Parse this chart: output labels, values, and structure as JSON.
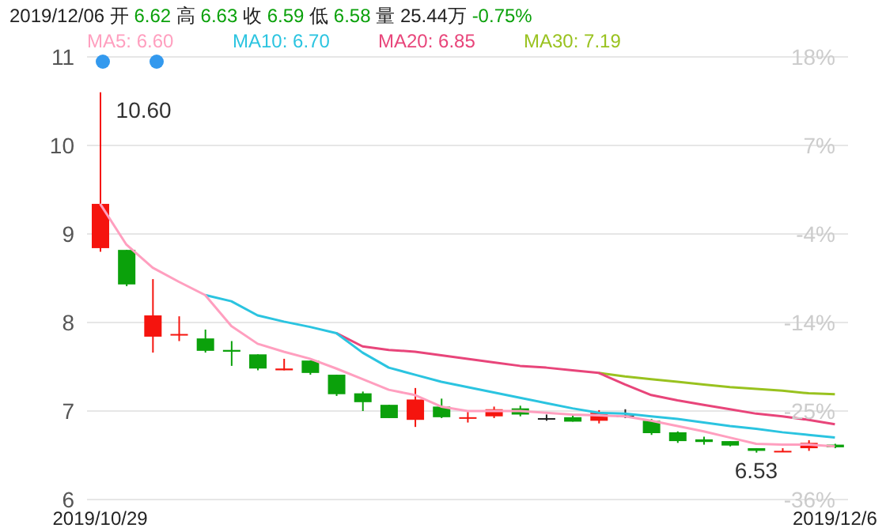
{
  "chart_data": {
    "type": "candlestick",
    "annotations": [
      "2019/12/06 开 6.62 高 6.63 收 6.59 低 6.58 量 25.44万 -0.75%",
      {
        "text": "10.60",
        "x": "2019/10/29",
        "y": 10.6
      },
      {
        "text": "6.53",
        "y": 6.53
      }
    ],
    "categories": [
      "2019/10/29",
      null,
      null,
      null,
      null,
      null,
      null,
      null,
      null,
      null,
      null,
      null,
      null,
      null,
      null,
      null,
      null,
      null,
      null,
      null,
      null,
      null,
      null,
      null,
      null,
      null,
      null,
      null,
      "2019/12/6"
    ],
    "ohlc": [
      [
        8.84,
        10.6,
        8.8,
        9.34
      ],
      [
        8.82,
        8.82,
        8.41,
        8.43
      ],
      [
        7.84,
        8.49,
        7.66,
        8.08
      ],
      [
        7.86,
        8.07,
        7.79,
        7.87
      ],
      [
        7.82,
        7.92,
        7.66,
        7.68
      ],
      [
        7.69,
        7.79,
        7.51,
        7.67
      ],
      [
        7.64,
        7.64,
        7.46,
        7.48
      ],
      [
        7.46,
        7.59,
        7.46,
        7.48
      ],
      [
        7.57,
        7.57,
        7.41,
        7.43
      ],
      [
        7.41,
        7.41,
        7.17,
        7.19
      ],
      [
        7.2,
        7.22,
        7.0,
        7.1
      ],
      [
        7.07,
        7.07,
        6.92,
        6.92
      ],
      [
        6.9,
        7.26,
        6.82,
        7.13
      ],
      [
        7.05,
        7.14,
        6.92,
        6.93
      ],
      [
        6.92,
        6.99,
        6.87,
        6.93
      ],
      [
        6.94,
        7.05,
        6.92,
        7.02
      ],
      [
        7.03,
        7.06,
        6.94,
        6.96
      ],
      [
        6.92,
        6.96,
        6.89,
        6.92
      ],
      [
        6.93,
        6.96,
        6.88,
        6.88
      ],
      [
        6.89,
        7.01,
        6.86,
        6.98
      ],
      [
        6.95,
        7.02,
        6.92,
        6.95
      ],
      [
        6.89,
        6.91,
        6.73,
        6.75
      ],
      [
        6.76,
        6.77,
        6.64,
        6.66
      ],
      [
        6.68,
        6.71,
        6.62,
        6.65
      ],
      [
        6.66,
        6.66,
        6.6,
        6.61
      ],
      [
        6.58,
        6.58,
        6.53,
        6.55
      ],
      [
        6.54,
        6.58,
        6.54,
        6.55
      ],
      [
        6.58,
        6.67,
        6.55,
        6.64
      ],
      [
        6.62,
        6.63,
        6.58,
        6.59
      ]
    ],
    "colors": [
      "#f5140e",
      "#0ba10b",
      "#f5140e",
      "#f5140e",
      "#0ba10b",
      "#0ba10b",
      "#0ba10b",
      "#f5140e",
      "#0ba10b",
      "#0ba10b",
      "#0ba10b",
      "#0ba10b",
      "#f5140e",
      "#0ba10b",
      "#f5140e",
      "#f5140e",
      "#0ba10b",
      "#222222",
      "#0ba10b",
      "#f5140e",
      "#222222",
      "#0ba10b",
      "#0ba10b",
      "#0ba10b",
      "#0ba10b",
      "#0ba10b",
      "#f5140e",
      "#f5140e",
      "#0ba10b"
    ],
    "series": [
      {
        "name": "MA30: 7.19",
        "type": "line",
        "color": "#99c21f",
        "values": [
          null,
          null,
          null,
          null,
          null,
          null,
          null,
          null,
          null,
          null,
          null,
          null,
          null,
          null,
          null,
          null,
          null,
          null,
          null,
          7.43,
          7.39,
          7.36,
          7.33,
          7.3,
          7.27,
          7.25,
          7.23,
          7.2,
          7.19
        ]
      },
      {
        "name": "MA20: 6.85",
        "type": "line",
        "color": "#e8457a",
        "values": [
          null,
          null,
          null,
          null,
          null,
          null,
          null,
          null,
          null,
          7.88,
          7.73,
          7.69,
          7.67,
          7.63,
          7.59,
          7.55,
          7.51,
          7.49,
          7.46,
          7.43,
          7.3,
          7.18,
          7.12,
          7.07,
          7.02,
          6.97,
          6.94,
          6.9,
          6.85
        ]
      },
      {
        "name": "MA10: 6.70",
        "type": "line",
        "color": "#2bc4e0",
        "values": [
          null,
          null,
          null,
          null,
          8.31,
          8.24,
          8.08,
          8.01,
          7.95,
          7.88,
          7.66,
          7.49,
          7.41,
          7.33,
          7.27,
          7.21,
          7.15,
          7.09,
          7.03,
          6.98,
          6.97,
          6.94,
          6.91,
          6.87,
          6.83,
          6.8,
          6.76,
          6.73,
          6.7
        ]
      },
      {
        "name": "MA5: 6.60",
        "type": "line",
        "color": "#ff9fbf",
        "values": [
          9.34,
          8.88,
          8.62,
          8.46,
          8.31,
          7.96,
          7.76,
          7.67,
          7.59,
          7.48,
          7.36,
          7.24,
          7.18,
          7.05,
          7.0,
          7.0,
          7.0,
          6.98,
          6.96,
          6.95,
          6.94,
          6.89,
          6.83,
          6.77,
          6.7,
          6.63,
          6.62,
          6.62,
          6.6
        ]
      }
    ],
    "ylim": [
      6,
      11
    ],
    "yticks": [
      6,
      7,
      8,
      9,
      10,
      11
    ],
    "y2lim": [
      -35.7,
      17.9
    ],
    "y2ticks": [
      {
        "value": 17.9,
        "label": "18%"
      },
      {
        "value": 7.2,
        "label": "7%"
      },
      {
        "value": -3.5,
        "label": "-4%"
      },
      {
        "value": -14.3,
        "label": "-14%"
      },
      {
        "value": -25,
        "label": "-25%"
      },
      {
        "value": -35.7,
        "label": "-36%"
      }
    ],
    "grid": "y",
    "legend": "top",
    "marker": "none",
    "line_style": "solid"
  }
}
